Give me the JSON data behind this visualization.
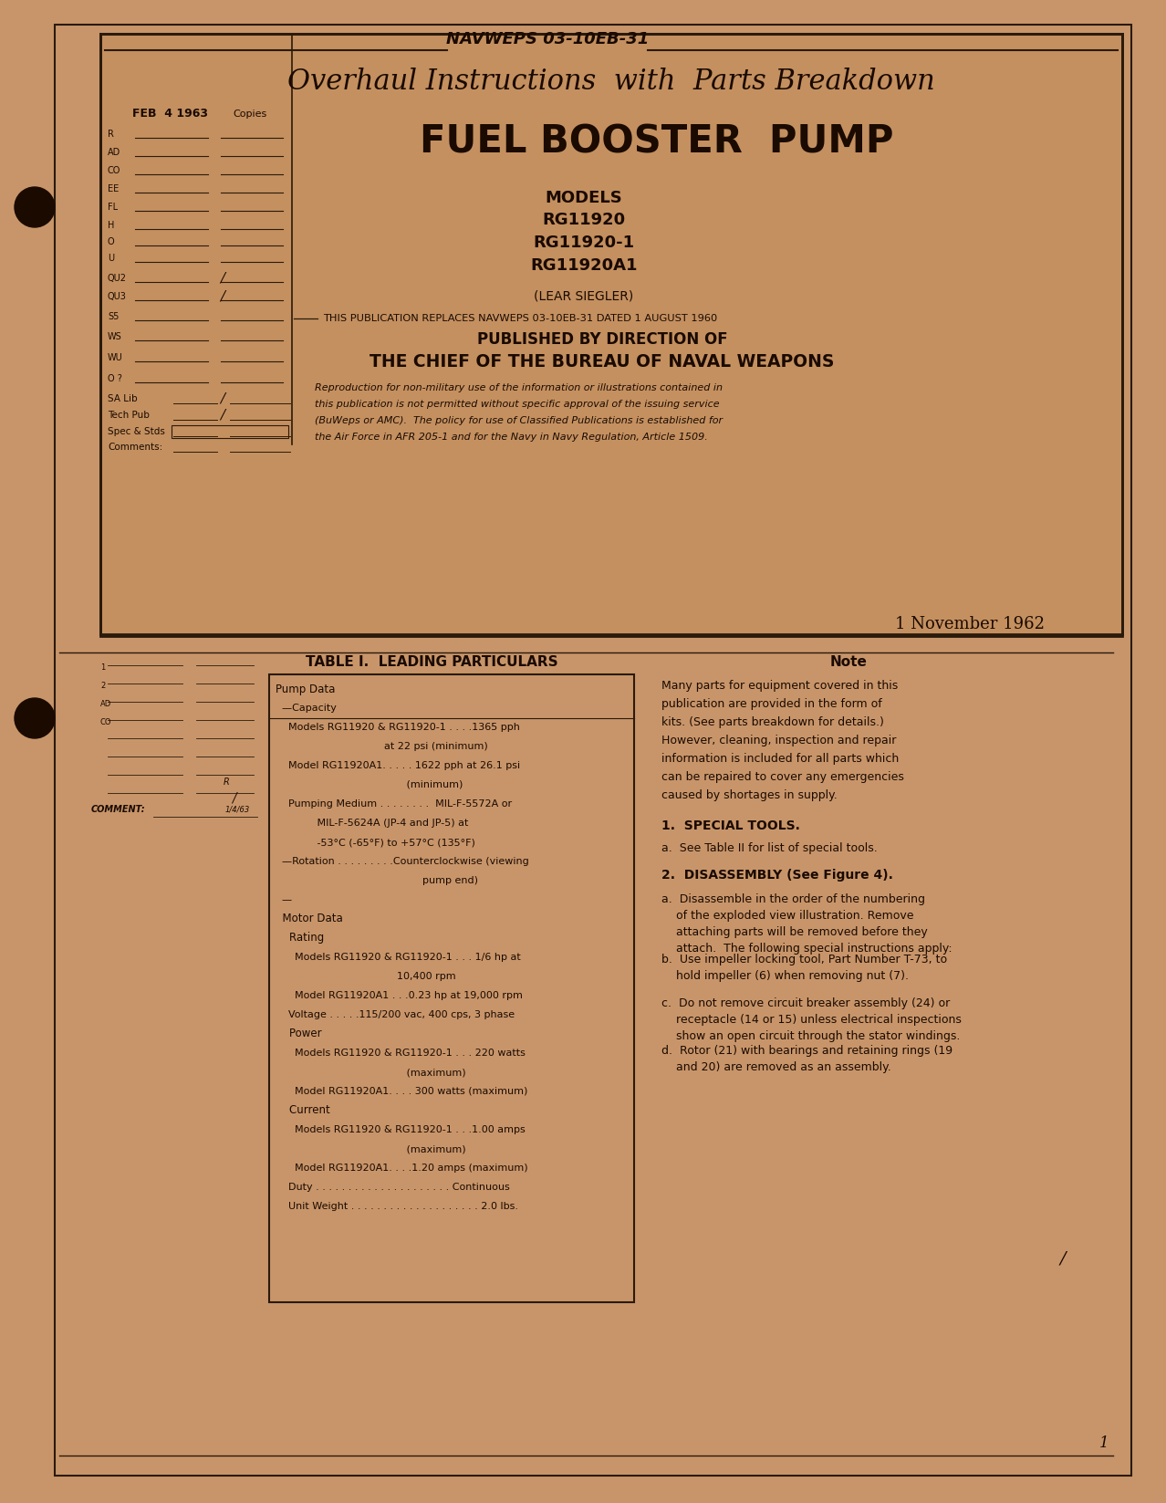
{
  "bg_color": "#c8956a",
  "paper_color": "#d4a574",
  "page_bg": "#c8956a",
  "header_text": "NAVWEPS 03-10EB-31",
  "title1": "Overhaul Instructions  with  Parts Breakdown",
  "title2": "FUEL BOOSTER  PUMP",
  "models_label": "MODELS",
  "models": [
    "RG11920",
    "RG11920-1",
    "RG11920A1"
  ],
  "manufacturer": "(LEAR SIEGLER)",
  "replaces_text": "THIS PUBLICATION REPLACES NAVWEPS 03-10EB-31 DATED 1 AUGUST 1960",
  "published_by": "PUBLISHED BY DIRECTION OF",
  "chief_text": "THE CHIEF OF THE BUREAU OF NAVAL WEAPONS",
  "copyright_text": "Reproduction for non-military use of the information or illustrations contained in\nthis publication is not permitted without specific approval of the issuing service\n(BuWeps or AMC).  The policy for use of Classified Publications is established for\nthe Air Force in AFR 205-1 and for the Navy in Navy Regulation, Article 1509.",
  "date": "1 November 1962",
  "stamp_date": "FEB  4 1963",
  "stamp_copies": "Copies",
  "left_labels": [
    "R",
    "AD",
    "CO",
    "EE",
    "FL",
    "H",
    "O",
    "U",
    "QU2",
    "QU3",
    "S5",
    "WS",
    "WU",
    "O ?"
  ],
  "bottom_labels": [
    "SA Lib",
    "Tech Pub",
    "Spec & Stds",
    "Comments:"
  ],
  "bottom_values": [
    "1",
    "2",
    ""
  ],
  "table_title": "TABLE I.  LEADING PARTICULARS",
  "table_content": [
    "Pump Data",
    "  —Capacity",
    "    Models RG11920 & RG11920-1 . . . .1365 pph",
    "                                  at 22 psi (minimum)",
    "    Model RG11920A1. . . . . 1622 pph at 26.1 psi",
    "                                         (minimum)",
    "    Pumping Medium . . . . . . . .  MIL-F-5572A or",
    "             MIL-F-5624A (JP-4 and JP-5) at",
    "             -53°C (-65°F) to +57°C (135°F)",
    "  —Rotation . . . . . . . . .Counterclockwise (viewing",
    "                                              pump end)",
    "  —",
    "  Motor Data",
    "    Rating",
    "      Models RG11920 & RG11920-1 . . . 1/6 hp at",
    "                                      10,400 rpm",
    "      Model RG11920A1 . . .0.23 hp at 19,000 rpm",
    "    Voltage . . . . .115/200 vac, 400 cps, 3 phase",
    "    Power",
    "      Models RG11920 & RG11920-1 . . . 220 watts",
    "                                         (maximum)",
    "      Model RG11920A1. . . . 300 watts (maximum)",
    "    Current",
    "      Models RG11920 & RG11920-1 . . .1.00 amps",
    "                                         (maximum)",
    "      Model RG11920A1. . . .1.20 amps (maximum)",
    "    Duty . . . . . . . . . . . . . . . . . . . . . Continuous",
    "    Unit Weight . . . . . . . . . . . . . . . . . . . . 2.0 lbs."
  ],
  "note_title": "Note",
  "note_text": "Many parts for equipment covered in this\npublication are provided in the form of\nkits. (See parts breakdown for details.)\nHowever, cleaning, inspection and repair\ninformation is included for all parts which\ncan be repaired to cover any emergencies\ncaused by shortages in supply.",
  "section1_title": "1.  SPECIAL TOOLS.",
  "section1a": "a.  See Table II for list of special tools.",
  "section2_title": "2.  DISASSEMBLY (See Figure 4).",
  "section2a": "a.  Disassemble in the order of the numbering\n    of the exploded view illustration. Remove\n    attaching parts will be removed before they\n    attach.  The following special instructions apply:",
  "section2b": "b.  Use impeller locking tool, Part Number T-73, to\n    hold impeller (6) when removing nut (7).",
  "section2c": "c.  Do not remove circuit breaker assembly (24) or\n    receptacle (14 or 15) unless electrical inspections\n    show an open circuit through the stator windings.",
  "section2d": "d.  Rotor (21) with bearings and retaining rings (19\n    and 20) are removed as an assembly.",
  "page_num": "1"
}
